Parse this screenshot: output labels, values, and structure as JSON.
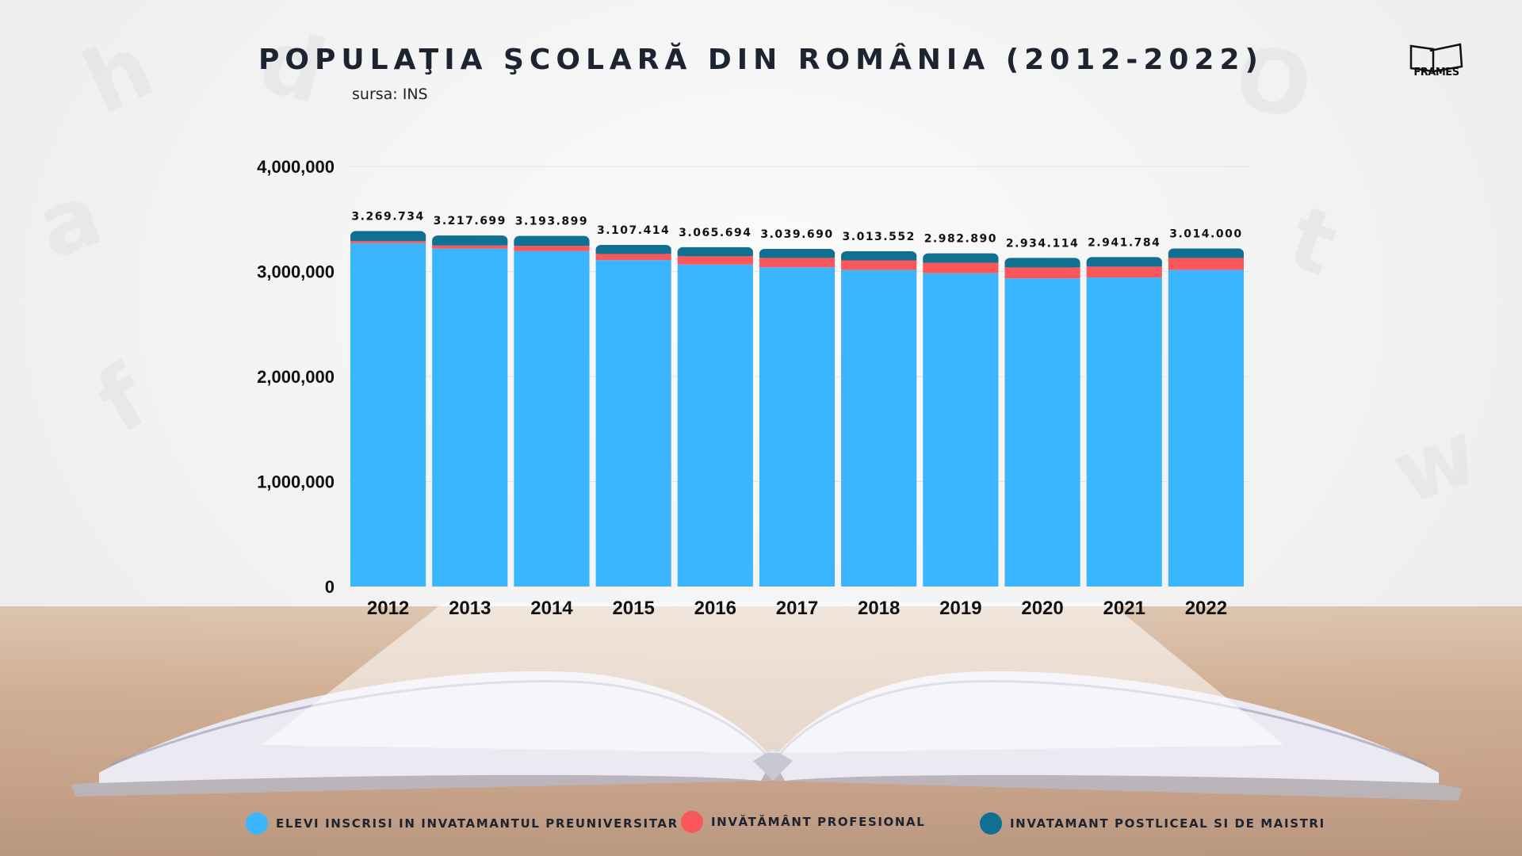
{
  "header": {
    "title": "POPULAŢIA ŞCOLARĂ DIN ROMÂNIA (2012-2022)",
    "source": "sursa: INS",
    "logo_text": "FRAMES"
  },
  "chart_data": {
    "type": "bar",
    "stacked": true,
    "title": "POPULAŢIA ŞCOLARĂ DIN ROMÂNIA (2012-2022)",
    "subtitle": "sursa: INS",
    "categories": [
      "2012",
      "2013",
      "2014",
      "2015",
      "2016",
      "2017",
      "2018",
      "2019",
      "2020",
      "2021",
      "2022"
    ],
    "series": [
      {
        "name": "ELEVI INSCRISI IN INVATAMANTUL PREUNIVERSITAR",
        "color": "#3bb5fd",
        "values": [
          3269734,
          3217699,
          3193899,
          3107414,
          3065694,
          3039690,
          3013552,
          2982890,
          2934114,
          2941784,
          3014000
        ]
      },
      {
        "name": "INVĂTĂMÂNT PROFESIONAL",
        "color": "#f9575b",
        "values": [
          20000,
          30000,
          50000,
          60000,
          80000,
          90000,
          92000,
          100000,
          105000,
          105000,
          115000
        ]
      },
      {
        "name": "INVATAMANT POSTLICEAL SI DE MAISTRI",
        "color": "#0f7092",
        "values": [
          95000,
          95000,
          95000,
          85000,
          85000,
          85000,
          87000,
          90000,
          90000,
          90000,
          90000
        ]
      }
    ],
    "data_labels": [
      "3.269.734",
      "3.217.699",
      "3.193.899",
      "3.107.414",
      "3.065.694",
      "3.039.690",
      "3.013.552",
      "2.982.890",
      "2.934.114",
      "2.941.784",
      "3.014.000"
    ],
    "y_ticks": [
      0,
      1000000,
      2000000,
      3000000,
      4000000
    ],
    "y_tick_labels": [
      "0",
      "1,000,000",
      "2,000,000",
      "3,000,000",
      "4,000,000"
    ],
    "ylim": [
      0,
      4000000
    ],
    "xlabel": "",
    "ylabel": "",
    "grid": true,
    "legend_position": "bottom"
  },
  "legend": [
    {
      "label": "ELEVI INSCRISI IN INVATAMANTUL PREUNIVERSITAR",
      "color": "#3bb5fd"
    },
    {
      "label": "INVĂTĂMÂNT PROFESIONAL",
      "color": "#f9575b"
    },
    {
      "label": "INVATAMANT POSTLICEAL SI DE MAISTRI",
      "color": "#0f7092"
    }
  ]
}
